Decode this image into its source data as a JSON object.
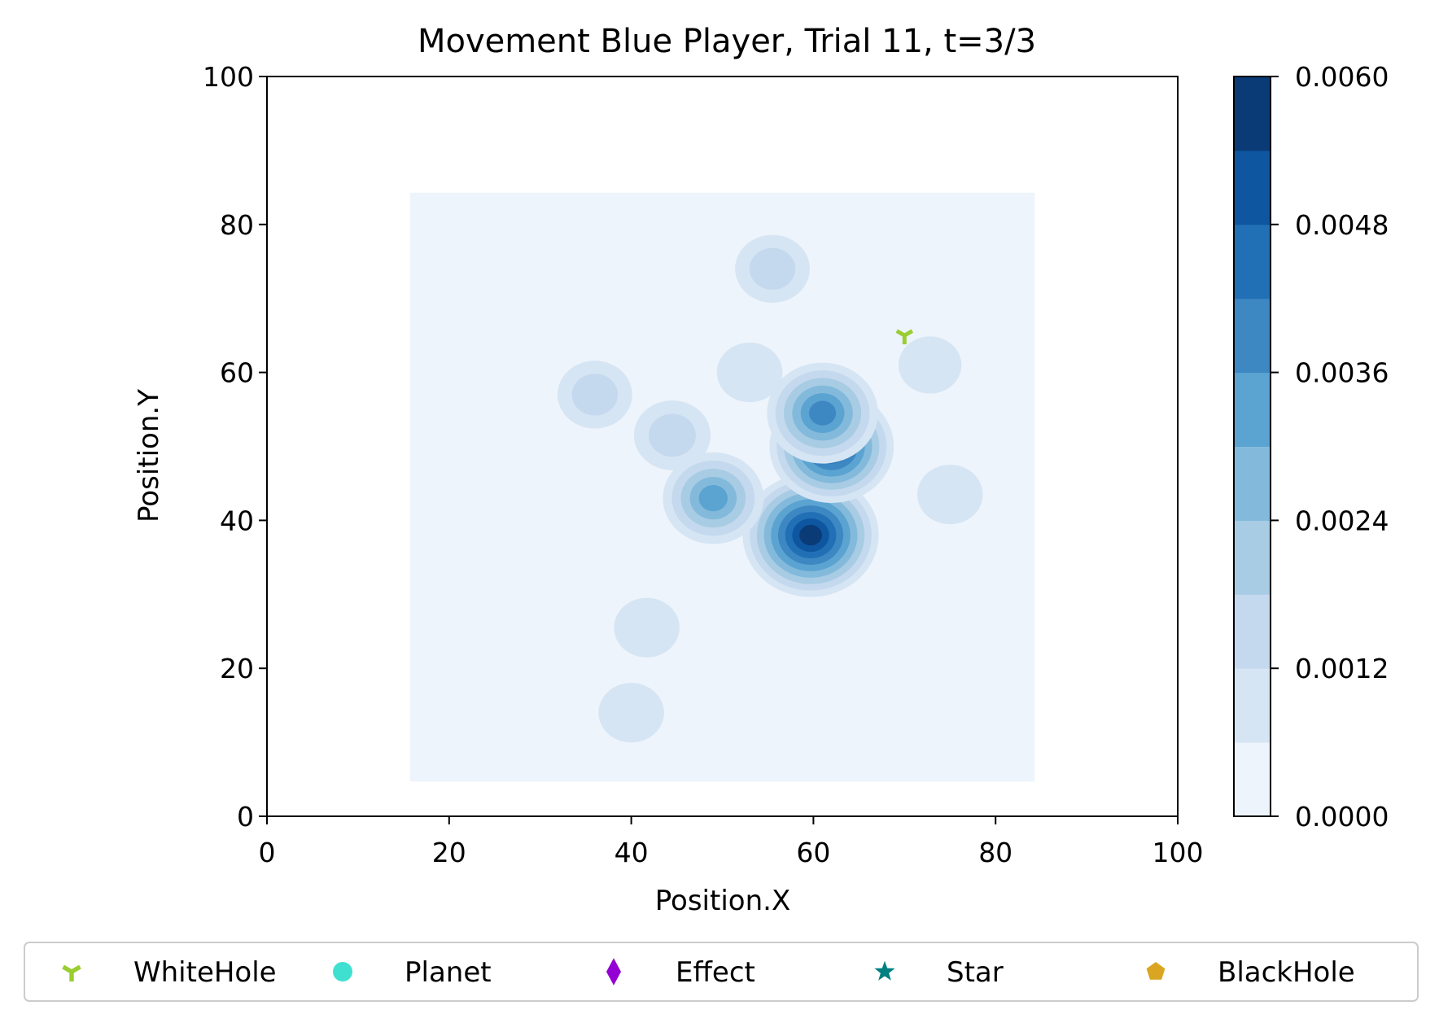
{
  "chart_data": {
    "type": "heatmap",
    "title": "Movement Blue Player, Trial 11, t=3/3",
    "xlabel": "Position.X",
    "ylabel": "Position.Y",
    "xlim": [
      0,
      100
    ],
    "ylim": [
      0,
      100
    ],
    "x_ticks": [
      "0",
      "20",
      "40",
      "60",
      "80",
      "100"
    ],
    "y_ticks": [
      "0",
      "20",
      "40",
      "60",
      "80",
      "100"
    ],
    "x_tick_values": [
      0,
      20,
      40,
      60,
      80,
      100
    ],
    "y_tick_values": [
      0,
      20,
      40,
      60,
      80,
      100
    ],
    "grid": false,
    "density_region": {
      "x": [
        15.7,
        84.3
      ],
      "y": [
        4.7,
        84.3
      ]
    },
    "colorbar": {
      "min": 0.0,
      "max": 0.006,
      "tick_labels": [
        "0.0000",
        "0.0012",
        "0.0024",
        "0.0036",
        "0.0048",
        "0.0060"
      ],
      "tick_values": [
        0.0,
        0.0012,
        0.0024,
        0.0036,
        0.0048,
        0.006
      ],
      "levels": 10,
      "colors": [
        "#eef4fb",
        "#d6e5f4",
        "#c5d9ee",
        "#a8cce4",
        "#83badb",
        "#5ba3d1",
        "#3d87c2",
        "#2170b5",
        "#0e56a0",
        "#0a3b77"
      ]
    },
    "density_peaks": [
      {
        "x": 59.7,
        "y": 38.0,
        "value": 0.006
      },
      {
        "x": 62.0,
        "y": 50.0,
        "value": 0.0048
      },
      {
        "x": 61.0,
        "y": 54.5,
        "value": 0.0036
      },
      {
        "x": 49.0,
        "y": 43.0,
        "value": 0.0028
      },
      {
        "x": 44.5,
        "y": 51.5,
        "value": 0.0013
      },
      {
        "x": 55.5,
        "y": 74.0,
        "value": 0.0012
      },
      {
        "x": 36.0,
        "y": 57.0,
        "value": 0.0012
      },
      {
        "x": 53.0,
        "y": 60.0,
        "value": 0.0008
      },
      {
        "x": 41.7,
        "y": 25.5,
        "value": 0.0008
      },
      {
        "x": 40.0,
        "y": 14.0,
        "value": 0.0008
      },
      {
        "x": 75.0,
        "y": 43.5,
        "value": 0.0008
      },
      {
        "x": 72.8,
        "y": 61.0,
        "value": 0.0007
      }
    ],
    "markers": [
      {
        "name": "WhiteHole",
        "x": 70.0,
        "y": 65.0,
        "color": "#9acd32",
        "shape": "tri-y"
      }
    ],
    "legend": {
      "placement": "bottom",
      "entries": [
        {
          "label": "WhiteHole",
          "color": "#9acd32",
          "shape": "tri-y"
        },
        {
          "label": "Planet",
          "color": "#40e0d0",
          "shape": "circle"
        },
        {
          "label": "Effect",
          "color": "#9400d3",
          "shape": "diamond"
        },
        {
          "label": "Star",
          "color": "#008080",
          "shape": "star"
        },
        {
          "label": "BlackHole",
          "color": "#daa520",
          "shape": "pentagon"
        }
      ]
    }
  }
}
